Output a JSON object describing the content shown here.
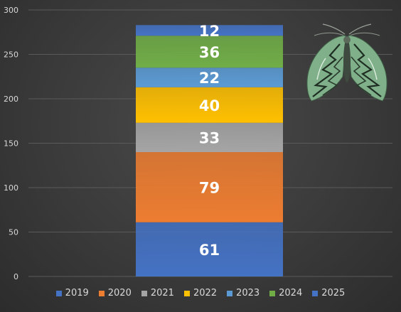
{
  "chart_data": {
    "type": "bar",
    "stacked": true,
    "categories": [
      ""
    ],
    "series": [
      {
        "name": "2019",
        "values": [
          61
        ],
        "color": "#4472c4"
      },
      {
        "name": "2020",
        "values": [
          79
        ],
        "color": "#ed7d31"
      },
      {
        "name": "2021",
        "values": [
          33
        ],
        "color": "#a5a5a5"
      },
      {
        "name": "2022",
        "values": [
          40
        ],
        "color": "#ffc000"
      },
      {
        "name": "2023",
        "values": [
          22
        ],
        "color": "#5b9bd5"
      },
      {
        "name": "2024",
        "values": [
          36
        ],
        "color": "#70ad47"
      },
      {
        "name": "2025",
        "values": [
          12
        ],
        "color": "#4472c4"
      }
    ],
    "yticks": [
      "0",
      "50",
      "100",
      "150",
      "200",
      "250",
      "300"
    ],
    "ylim": [
      0,
      300
    ],
    "grid": true,
    "legend": "bottom",
    "background": "#3a3a3a",
    "decoration": "moth-illustration"
  }
}
